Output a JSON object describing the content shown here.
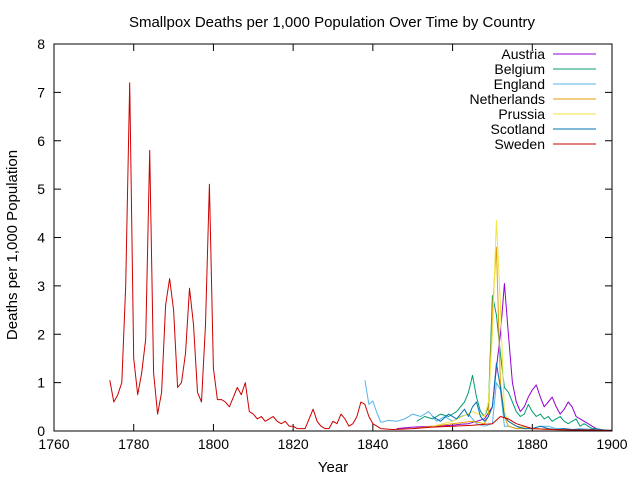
{
  "chart_data": {
    "type": "line",
    "title": "Smallpox Deaths per 1,000 Population Over Time by Country",
    "xlabel": "Year",
    "ylabel": "Deaths per 1,000 Population",
    "xlim": [
      1760,
      1900
    ],
    "ylim": [
      0,
      8
    ],
    "xticks": [
      1760,
      1780,
      1800,
      1820,
      1840,
      1860,
      1880,
      1900
    ],
    "yticks": [
      0,
      1,
      2,
      3,
      4,
      5,
      6,
      7,
      8
    ],
    "grid": false,
    "legend_position": "top-right",
    "series": [
      {
        "name": "Austria",
        "color": "#9400d3",
        "x": [
          1846,
          1850,
          1855,
          1860,
          1862,
          1864,
          1866,
          1868,
          1870,
          1871,
          1872,
          1873,
          1874,
          1875,
          1876,
          1877,
          1878,
          1879,
          1880,
          1881,
          1882,
          1883,
          1884,
          1885,
          1886,
          1887,
          1888,
          1889,
          1890,
          1891,
          1892,
          1893,
          1894,
          1895,
          1896
        ],
        "values": [
          0.05,
          0.08,
          0.1,
          0.12,
          0.14,
          0.15,
          0.2,
          0.25,
          0.5,
          1.3,
          2.0,
          3.05,
          2.0,
          1.0,
          0.6,
          0.4,
          0.5,
          0.7,
          0.85,
          0.95,
          0.7,
          0.5,
          0.6,
          0.7,
          0.5,
          0.35,
          0.45,
          0.6,
          0.5,
          0.3,
          0.25,
          0.2,
          0.15,
          0.1,
          0.05
        ]
      },
      {
        "name": "Belgium",
        "color": "#009e73",
        "x": [
          1851,
          1853,
          1855,
          1857,
          1859,
          1861,
          1863,
          1864,
          1865,
          1866,
          1867,
          1868,
          1869,
          1870,
          1871,
          1872,
          1873,
          1874,
          1875,
          1876,
          1877,
          1878,
          1879,
          1880,
          1881,
          1882,
          1883,
          1884,
          1885,
          1886,
          1887,
          1888,
          1889,
          1890,
          1891,
          1892,
          1893,
          1894,
          1895,
          1896
        ],
        "values": [
          0.2,
          0.3,
          0.25,
          0.35,
          0.3,
          0.4,
          0.6,
          0.8,
          1.15,
          0.7,
          0.4,
          0.3,
          0.5,
          2.8,
          2.4,
          1.6,
          0.9,
          0.8,
          0.6,
          0.4,
          0.3,
          0.35,
          0.55,
          0.4,
          0.3,
          0.35,
          0.25,
          0.3,
          0.2,
          0.25,
          0.3,
          0.2,
          0.15,
          0.2,
          0.25,
          0.1,
          0.15,
          0.1,
          0.05,
          0.05
        ]
      },
      {
        "name": "England",
        "color": "#56b4e9",
        "x": [
          1838,
          1839,
          1840,
          1841,
          1842,
          1844,
          1846,
          1848,
          1850,
          1852,
          1854,
          1856,
          1858,
          1860,
          1862,
          1864,
          1866,
          1868,
          1870,
          1871,
          1872,
          1873,
          1874,
          1876,
          1878,
          1880,
          1882,
          1884,
          1886,
          1888,
          1890,
          1892,
          1894,
          1896,
          1898,
          1900
        ],
        "values": [
          1.05,
          0.55,
          0.62,
          0.38,
          0.18,
          0.22,
          0.2,
          0.25,
          0.35,
          0.3,
          0.4,
          0.2,
          0.3,
          0.2,
          0.3,
          0.35,
          0.15,
          0.1,
          0.15,
          1.0,
          0.85,
          0.1,
          0.1,
          0.05,
          0.1,
          0.05,
          0.1,
          0.1,
          0.05,
          0.05,
          0.03,
          0.05,
          0.04,
          0.03,
          0.02,
          0.02
        ]
      },
      {
        "name": "Netherlands",
        "color": "#e69f00",
        "x": [
          1850,
          1855,
          1860,
          1865,
          1868,
          1869,
          1870,
          1871,
          1872,
          1873,
          1874,
          1876,
          1880,
          1885,
          1890,
          1895,
          1900
        ],
        "values": [
          0.05,
          0.1,
          0.15,
          0.2,
          0.15,
          0.3,
          2.5,
          3.8,
          1.0,
          0.3,
          0.1,
          0.05,
          0.05,
          0.03,
          0.02,
          0.02,
          0.01
        ]
      },
      {
        "name": "Prussia",
        "color": "#f0e442",
        "x": [
          1855,
          1860,
          1865,
          1868,
          1869,
          1870,
          1871,
          1872,
          1873,
          1874,
          1876,
          1880,
          1885,
          1890,
          1895,
          1900
        ],
        "values": [
          0.1,
          0.2,
          0.4,
          0.3,
          0.6,
          2.0,
          4.35,
          2.6,
          0.4,
          0.2,
          0.1,
          0.05,
          0.03,
          0.02,
          0.02,
          0.01
        ]
      },
      {
        "name": "Scotland",
        "color": "#0072b2",
        "x": [
          1855,
          1857,
          1859,
          1861,
          1863,
          1864,
          1865,
          1866,
          1867,
          1868,
          1869,
          1870,
          1871,
          1872,
          1873,
          1874,
          1876,
          1878,
          1880,
          1882,
          1884,
          1886,
          1888,
          1890,
          1892,
          1894,
          1896,
          1898,
          1900
        ],
        "values": [
          0.3,
          0.2,
          0.35,
          0.25,
          0.45,
          0.3,
          0.5,
          0.6,
          0.3,
          0.2,
          0.3,
          0.5,
          1.4,
          0.9,
          0.3,
          0.2,
          0.1,
          0.05,
          0.05,
          0.1,
          0.05,
          0.03,
          0.05,
          0.03,
          0.03,
          0.02,
          0.05,
          0.02,
          0.01
        ]
      },
      {
        "name": "Sweden",
        "color": "#cc0000",
        "x": [
          1774,
          1775,
          1776,
          1777,
          1778,
          1779,
          1780,
          1781,
          1782,
          1783,
          1784,
          1785,
          1786,
          1787,
          1788,
          1789,
          1790,
          1791,
          1792,
          1793,
          1794,
          1795,
          1796,
          1797,
          1798,
          1799,
          1800,
          1801,
          1802,
          1803,
          1804,
          1805,
          1806,
          1807,
          1808,
          1809,
          1810,
          1811,
          1812,
          1813,
          1814,
          1815,
          1816,
          1817,
          1818,
          1819,
          1820,
          1821,
          1822,
          1823,
          1824,
          1825,
          1826,
          1827,
          1828,
          1829,
          1830,
          1831,
          1832,
          1833,
          1834,
          1835,
          1836,
          1837,
          1838,
          1839,
          1840,
          1842,
          1845,
          1850,
          1855,
          1860,
          1865,
          1870,
          1872,
          1874,
          1876,
          1880,
          1885,
          1890,
          1895,
          1900
        ],
        "values": [
          1.05,
          0.6,
          0.75,
          1.0,
          3.0,
          7.2,
          1.5,
          0.75,
          1.2,
          1.9,
          5.8,
          1.2,
          0.35,
          0.8,
          2.6,
          3.15,
          2.5,
          0.9,
          1.0,
          1.6,
          2.95,
          2.2,
          0.8,
          0.6,
          2.2,
          5.1,
          1.3,
          0.65,
          0.65,
          0.6,
          0.5,
          0.7,
          0.9,
          0.75,
          1.0,
          0.4,
          0.35,
          0.25,
          0.3,
          0.2,
          0.25,
          0.3,
          0.2,
          0.15,
          0.2,
          0.1,
          0.1,
          0.05,
          0.05,
          0.05,
          0.25,
          0.45,
          0.2,
          0.1,
          0.05,
          0.05,
          0.2,
          0.15,
          0.35,
          0.25,
          0.1,
          0.15,
          0.3,
          0.6,
          0.55,
          0.3,
          0.15,
          0.05,
          0.03,
          0.05,
          0.08,
          0.1,
          0.12,
          0.15,
          0.3,
          0.25,
          0.15,
          0.05,
          0.03,
          0.02,
          0.02,
          0.01
        ]
      }
    ]
  }
}
